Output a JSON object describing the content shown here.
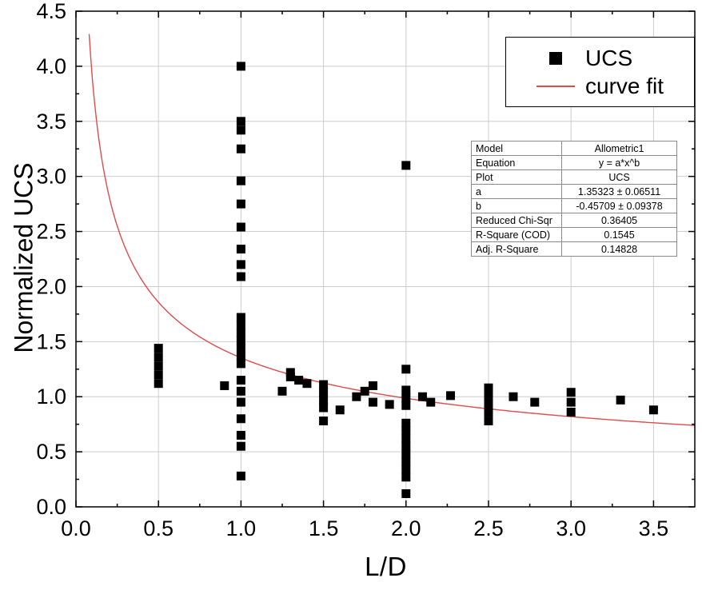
{
  "chart_data": {
    "type": "scatter",
    "title": "",
    "xlabel": "L/D",
    "ylabel": "Normalized UCS",
    "xlim": [
      0,
      3.75
    ],
    "ylim": [
      0,
      4.5
    ],
    "xticks": [
      0.0,
      0.5,
      1.0,
      1.5,
      2.0,
      2.5,
      3.0,
      3.5
    ],
    "yticks": [
      0.0,
      0.5,
      1.0,
      1.5,
      2.0,
      2.5,
      3.0,
      3.5,
      4.0,
      4.5
    ],
    "grid": true,
    "grid_color": "#cccccc",
    "legend_position": "top-right",
    "series": [
      {
        "name": "UCS",
        "type": "scatter",
        "marker": "square",
        "color": "#000000",
        "points": [
          [
            0.5,
            1.12
          ],
          [
            0.5,
            1.2
          ],
          [
            0.5,
            1.28
          ],
          [
            0.5,
            1.36
          ],
          [
            0.5,
            1.44
          ],
          [
            0.9,
            1.1
          ],
          [
            1.0,
            4.0
          ],
          [
            1.0,
            3.5
          ],
          [
            1.0,
            3.42
          ],
          [
            1.0,
            3.25
          ],
          [
            1.0,
            2.96
          ],
          [
            1.0,
            2.75
          ],
          [
            1.0,
            2.54
          ],
          [
            1.0,
            2.34
          ],
          [
            1.0,
            2.2
          ],
          [
            1.0,
            2.09
          ],
          [
            1.0,
            1.72
          ],
          [
            1.0,
            1.65
          ],
          [
            1.0,
            1.58
          ],
          [
            1.0,
            1.51
          ],
          [
            1.0,
            1.44
          ],
          [
            1.0,
            1.37
          ],
          [
            1.0,
            1.3
          ],
          [
            1.0,
            1.15
          ],
          [
            1.0,
            1.05
          ],
          [
            1.0,
            0.95
          ],
          [
            1.0,
            0.8
          ],
          [
            1.0,
            0.65
          ],
          [
            1.0,
            0.55
          ],
          [
            1.0,
            0.28
          ],
          [
            1.25,
            1.05
          ],
          [
            1.3,
            1.22
          ],
          [
            1.3,
            1.18
          ],
          [
            1.35,
            1.15
          ],
          [
            1.4,
            1.12
          ],
          [
            1.5,
            1.11
          ],
          [
            1.5,
            1.04
          ],
          [
            1.5,
            0.97
          ],
          [
            1.5,
            0.9
          ],
          [
            1.5,
            0.78
          ],
          [
            1.6,
            0.88
          ],
          [
            1.7,
            1.0
          ],
          [
            1.75,
            1.05
          ],
          [
            1.8,
            1.1
          ],
          [
            1.8,
            0.95
          ],
          [
            1.9,
            0.93
          ],
          [
            2.0,
            3.1
          ],
          [
            2.0,
            1.25
          ],
          [
            2.0,
            1.06
          ],
          [
            2.0,
            0.99
          ],
          [
            2.0,
            0.92
          ],
          [
            2.0,
            0.76
          ],
          [
            2.0,
            0.69
          ],
          [
            2.0,
            0.62
          ],
          [
            2.0,
            0.55
          ],
          [
            2.0,
            0.48
          ],
          [
            2.0,
            0.41
          ],
          [
            2.0,
            0.34
          ],
          [
            2.0,
            0.27
          ],
          [
            2.0,
            0.12
          ],
          [
            2.1,
            1.0
          ],
          [
            2.15,
            0.95
          ],
          [
            2.27,
            1.01
          ],
          [
            2.5,
            1.08
          ],
          [
            2.5,
            1.02
          ],
          [
            2.5,
            0.94
          ],
          [
            2.5,
            0.86
          ],
          [
            2.5,
            0.78
          ],
          [
            2.65,
            1.0
          ],
          [
            2.78,
            0.95
          ],
          [
            3.0,
            1.04
          ],
          [
            3.0,
            0.95
          ],
          [
            3.0,
            0.86
          ],
          [
            3.3,
            0.97
          ],
          [
            3.5,
            0.88
          ]
        ]
      },
      {
        "name": "curve fit",
        "type": "line",
        "color": "#dd4b4b",
        "fit": {
          "a": 1.35323,
          "b": -0.45709,
          "x_start": 0.08,
          "x_end": 3.75
        }
      }
    ]
  },
  "legend": {
    "entries": [
      {
        "label": "UCS"
      },
      {
        "label": "curve fit"
      }
    ]
  },
  "stats": {
    "rows": [
      [
        "Model",
        "Allometric1"
      ],
      [
        "Equation",
        "y = a*x^b"
      ],
      [
        "Plot",
        "UCS"
      ],
      [
        "a",
        "1.35323 ± 0.06511"
      ],
      [
        "b",
        "-0.45709 ± 0.09378"
      ],
      [
        "Reduced Chi-Sqr",
        "0.36405"
      ],
      [
        "R-Square (COD)",
        "0.1545"
      ],
      [
        "Adj. R-Square",
        "0.14828"
      ]
    ]
  }
}
